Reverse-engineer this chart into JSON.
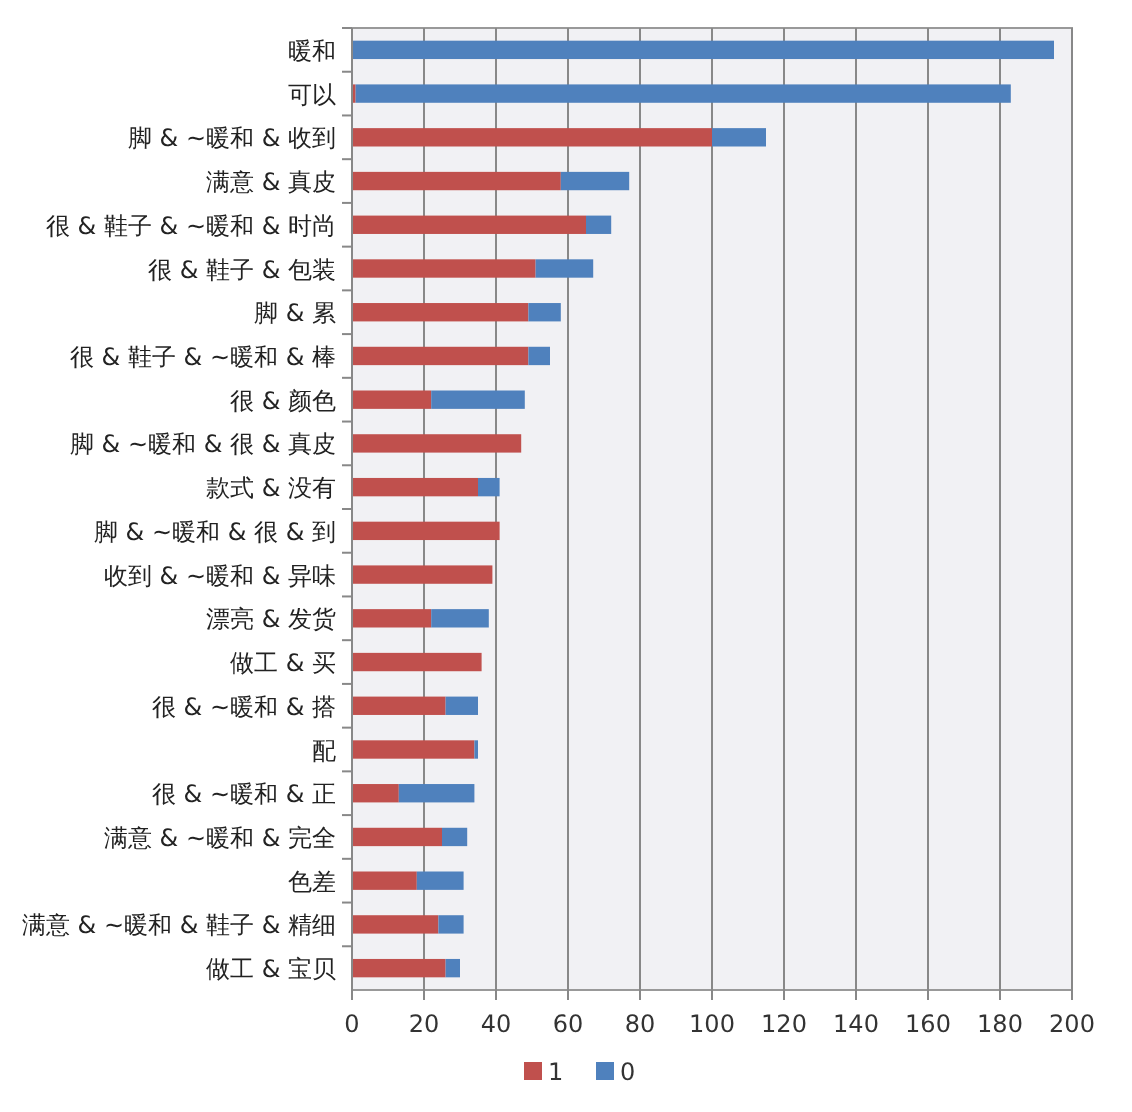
{
  "chart_data": {
    "type": "bar",
    "orientation": "horizontal",
    "stacked": true,
    "categories": [
      "暖和",
      "可以",
      "脚 & ~暖和 & 收到",
      "满意 & 真皮",
      "很 & 鞋子 & ~暖和 & 时尚",
      "很 & 鞋子 & 包装",
      "脚 & 累",
      "很 & 鞋子 & ~暖和 & 棒",
      "很 & 颜色",
      "脚 & ~暖和 & 很 & 真皮",
      "款式 & 没有",
      "脚 & ~暖和 & 很 & 到",
      "收到 & ~暖和 & 异味",
      "漂亮 & 发货",
      "做工 & 买",
      "很 & ~暖和 & 搭",
      "配",
      "很 & ~暖和 & 正",
      "满意 & ~暖和 & 完全",
      "色差",
      "满意 & ~暖和 & 鞋子 & 精细",
      "做工 & 宝贝"
    ],
    "series": [
      {
        "name": "1",
        "color": "#c0504d",
        "values": [
          0,
          1,
          100,
          58,
          65,
          51,
          49,
          49,
          22,
          47,
          35,
          41,
          39,
          22,
          36,
          26,
          34,
          13,
          25,
          18,
          24,
          26
        ]
      },
      {
        "name": "0",
        "color": "#4f81bd",
        "values": [
          195,
          182,
          15,
          19,
          7,
          16,
          9,
          6,
          26,
          0,
          6,
          0,
          0,
          16,
          0,
          9,
          1,
          21,
          7,
          13,
          7,
          4
        ]
      }
    ],
    "xlim": [
      0,
      200
    ],
    "xticks": [
      0,
      20,
      40,
      60,
      80,
      100,
      120,
      140,
      160,
      180,
      200
    ],
    "grid": "x",
    "legend": "bottom"
  }
}
